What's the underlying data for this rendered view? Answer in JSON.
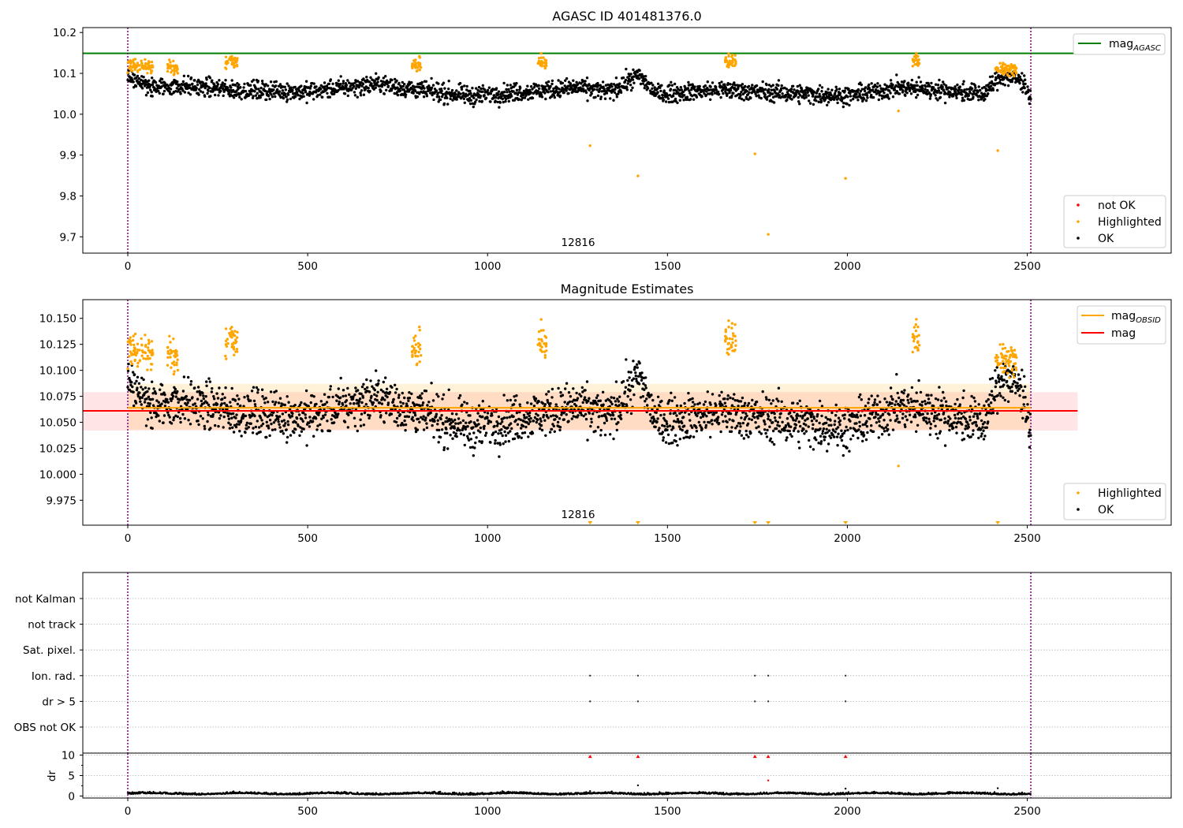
{
  "chart_data": [
    {
      "type": "scatter",
      "title": "AGASC ID 401481376.0",
      "xlim": [
        -125,
        2900
      ],
      "ylim": [
        9.66,
        10.212
      ],
      "xticks": [
        0,
        500,
        1000,
        1500,
        2000,
        2500
      ],
      "yticks": [
        9.7,
        9.8,
        9.9,
        10.0,
        10.1,
        10.2
      ],
      "ytick_labels": [
        "9.7",
        "9.8",
        "9.9",
        "10.0",
        "10.1",
        "10.2"
      ],
      "vlines": [
        0,
        2510
      ],
      "obsid_label": {
        "text": "12816",
        "x": 1255,
        "y": 9.675
      },
      "hline": {
        "name": "mag_AGASC",
        "value": 10.149,
        "x": [
          -125,
          2640
        ],
        "color": "#008000"
      },
      "ok_series": {
        "name": "OK",
        "color": "#000000"
      },
      "highlighted_series": {
        "name": "Highlighted",
        "color": "#ffa500"
      },
      "notok_series": {
        "name": "not OK",
        "color": "#ff0000"
      },
      "outliers": [
        [
          1285,
          9.923
        ],
        [
          1418,
          9.849
        ],
        [
          1743,
          9.903
        ],
        [
          1780,
          9.706
        ],
        [
          1995,
          9.843
        ],
        [
          2142,
          10.008
        ],
        [
          2418,
          9.911
        ]
      ],
      "legend_top": {
        "label_main": "mag",
        "label_sub": "AGASC",
        "placement": "top-right"
      },
      "legend_bottom": {
        "items": [
          "not OK",
          "Highlighted",
          "OK"
        ],
        "placement": "bottom-right"
      }
    },
    {
      "type": "scatter",
      "title": "Magnitude Estimates",
      "xlim": [
        -125,
        2900
      ],
      "ylim": [
        9.951,
        10.168
      ],
      "xticks": [
        0,
        500,
        1000,
        1500,
        2000,
        2500
      ],
      "yticks": [
        9.975,
        10.0,
        10.025,
        10.05,
        10.075,
        10.1,
        10.125,
        10.15
      ],
      "ytick_labels": [
        "9.975",
        "10.000",
        "10.025",
        "10.050",
        "10.075",
        "10.100",
        "10.125",
        "10.150"
      ],
      "vlines": [
        0,
        2510
      ],
      "obsid_label": {
        "text": "12816",
        "x": 1255,
        "y": 9.958
      },
      "mag_line": {
        "name": "mag",
        "value": 10.061,
        "band": [
          10.042,
          10.079
        ],
        "x": [
          -125,
          2640
        ],
        "color": "#ff0000"
      },
      "mag_obsid_line": {
        "name": "mag_OBSID",
        "value": 10.064,
        "band": [
          10.043,
          10.087
        ],
        "x": [
          0,
          2510
        ],
        "color": "#ffa500"
      },
      "below_markers": [
        1285,
        1418,
        1743,
        1780,
        1995,
        2418
      ],
      "legend_top": {
        "items": [
          {
            "main": "mag",
            "sub": "OBSID"
          },
          {
            "main": "mag",
            "sub": ""
          }
        ],
        "placement": "top-right"
      },
      "legend_bottom": {
        "items": [
          "Highlighted",
          "OK"
        ],
        "placement": "bottom-right"
      }
    },
    {
      "type": "scatter",
      "title": "",
      "xlim": [
        -125,
        2900
      ],
      "categories": [
        "not Kalman",
        "not track",
        "Sat. pixel.",
        "Ion. rad.",
        "dr > 5",
        "OBS not OK"
      ],
      "flag_points": {
        "not Kalman": [],
        "not track": [],
        "Sat. pixel.": [],
        "Ion. rad.": [
          1285,
          1418,
          1743,
          1780,
          1995
        ],
        "dr > 5": [
          1285,
          1418,
          1743,
          1780,
          1995
        ],
        "OBS not OK": []
      }
    },
    {
      "type": "scatter",
      "title": "",
      "xlim": [
        -125,
        2900
      ],
      "ylim": [
        -0.5,
        10.5
      ],
      "ylabel": "dr",
      "xticks": [
        0,
        500,
        1000,
        1500,
        2000,
        2500
      ],
      "yticks": [
        0,
        5,
        10
      ],
      "ytick_labels": [
        "0",
        "5",
        "10"
      ],
      "vlines": [
        0,
        2510
      ],
      "clipped_markers": [
        1285,
        1418,
        1743,
        1780,
        1995
      ],
      "dr_extra_points": [
        [
          1285,
          1.2
        ],
        [
          1418,
          2.6
        ],
        [
          1780,
          3.8
        ],
        [
          1995,
          1.8
        ],
        [
          2418,
          1.9
        ]
      ]
    }
  ]
}
